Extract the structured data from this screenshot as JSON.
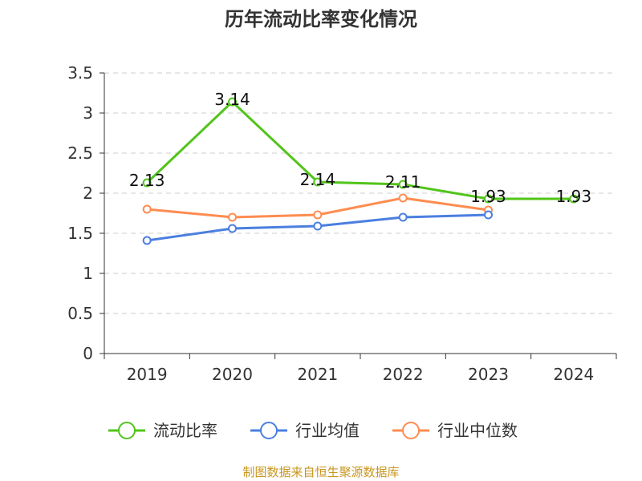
{
  "chart_data": {
    "type": "line",
    "title": "历年流动比率变化情况",
    "categories": [
      "2019",
      "2020",
      "2021",
      "2022",
      "2023",
      "2024"
    ],
    "ylim": [
      0,
      3.5
    ],
    "yticks": [
      "0",
      "0.5",
      "1",
      "1.5",
      "2",
      "2.5",
      "3",
      "3.5"
    ],
    "grid": true,
    "legend_position": "bottom",
    "series": [
      {
        "name": "流动比率",
        "color": "#52c41a",
        "values": [
          2.13,
          3.14,
          2.14,
          2.11,
          1.93,
          1.93
        ],
        "labels": [
          "2.13",
          "3.14",
          "2.14",
          "2.11",
          "1.93",
          "1.93"
        ]
      },
      {
        "name": "行业均值",
        "color": "#4a7fe0",
        "values": [
          1.41,
          1.56,
          1.59,
          1.7,
          1.73,
          null
        ]
      },
      {
        "name": "行业中位数",
        "color": "#ff8c50",
        "values": [
          1.8,
          1.7,
          1.73,
          1.94,
          1.79,
          null
        ]
      }
    ],
    "source": "制图数据来自恒生聚源数据库"
  }
}
